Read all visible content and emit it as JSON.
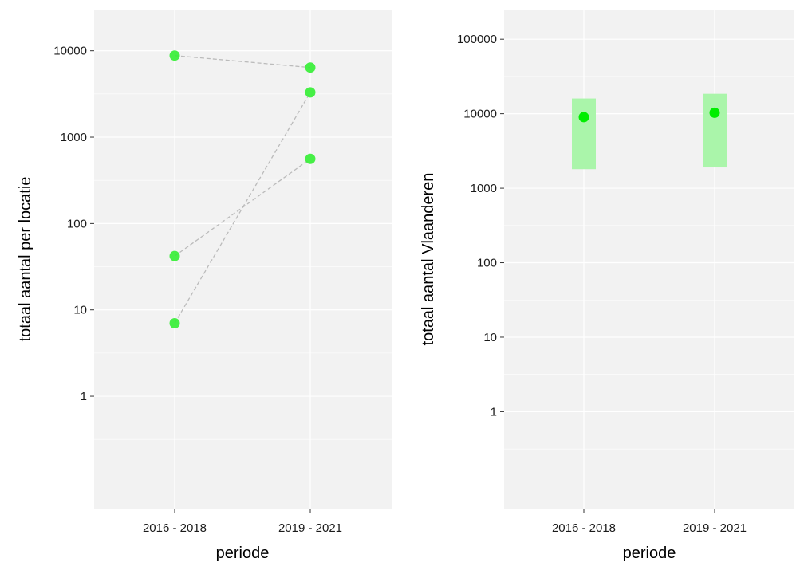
{
  "chart_data": [
    {
      "type": "scatter",
      "title": "",
      "xlabel": "periode",
      "ylabel": "totaal aantal per locatie",
      "y_scale": "log",
      "ylim": [
        0.05,
        30000
      ],
      "grid": true,
      "categories": [
        "2016 - 2018",
        "2019 - 2021"
      ],
      "y_ticks": [
        1,
        10,
        100,
        1000,
        10000
      ],
      "y_tick_labels": [
        "1",
        "10",
        "100",
        "1000",
        "10000"
      ],
      "point_color": "#33ee33",
      "line_color": "#bbbbbb",
      "series": [
        {
          "values": [
            8800,
            6400
          ]
        },
        {
          "values": [
            42,
            560
          ]
        },
        {
          "values": [
            7,
            3300
          ]
        }
      ]
    },
    {
      "type": "scatter",
      "title": "",
      "xlabel": "periode",
      "ylabel": "totaal aantal Vlaanderen",
      "y_scale": "log",
      "ylim": [
        0.05,
        250000
      ],
      "grid": true,
      "categories": [
        "2016 - 2018",
        "2019 - 2021"
      ],
      "y_ticks": [
        1,
        10,
        100,
        1000,
        10000,
        100000
      ],
      "y_tick_labels": [
        "1",
        "10",
        "100",
        "1000",
        "10000",
        "100000"
      ],
      "point_color": "#00ee00",
      "interval_color": "#aaf5aa",
      "values": [
        9000,
        10300
      ],
      "lower": [
        1800,
        1900
      ],
      "upper": [
        16000,
        18500
      ]
    }
  ]
}
